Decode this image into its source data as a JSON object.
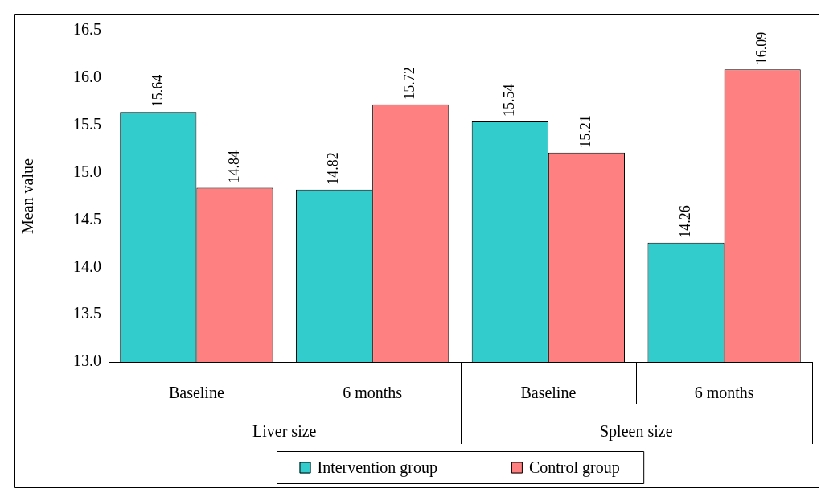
{
  "chart_data": {
    "type": "bar",
    "ylabel": "Mean value",
    "categories": [
      "Baseline",
      "6 months",
      "Baseline",
      "6 months"
    ],
    "series": [
      {
        "name": "Intervention group",
        "color": "#33cccc",
        "values": [
          15.64,
          14.82,
          15.54,
          14.26
        ]
      },
      {
        "name": "Control group",
        "color": "#ff8080",
        "values": [
          14.84,
          15.72,
          15.21,
          16.09
        ]
      }
    ],
    "ylim": [
      13.0,
      16.5
    ],
    "yticks": [
      {
        "value": 13,
        "label": "13.0"
      },
      {
        "value": 13.5,
        "label": "13.5"
      },
      {
        "value": 14,
        "label": "14.0"
      },
      {
        "value": 14.5,
        "label": "14.5"
      },
      {
        "value": 15,
        "label": "15.0"
      },
      {
        "value": 15.5,
        "label": "15.5"
      },
      {
        "value": 16,
        "label": "16.0"
      },
      {
        "value": 16.5,
        "label": "16.5"
      }
    ],
    "annotations": [
      "Liver size",
      "Spleen size"
    ],
    "data_labels": true,
    "grid": false,
    "legend": "bottom"
  }
}
